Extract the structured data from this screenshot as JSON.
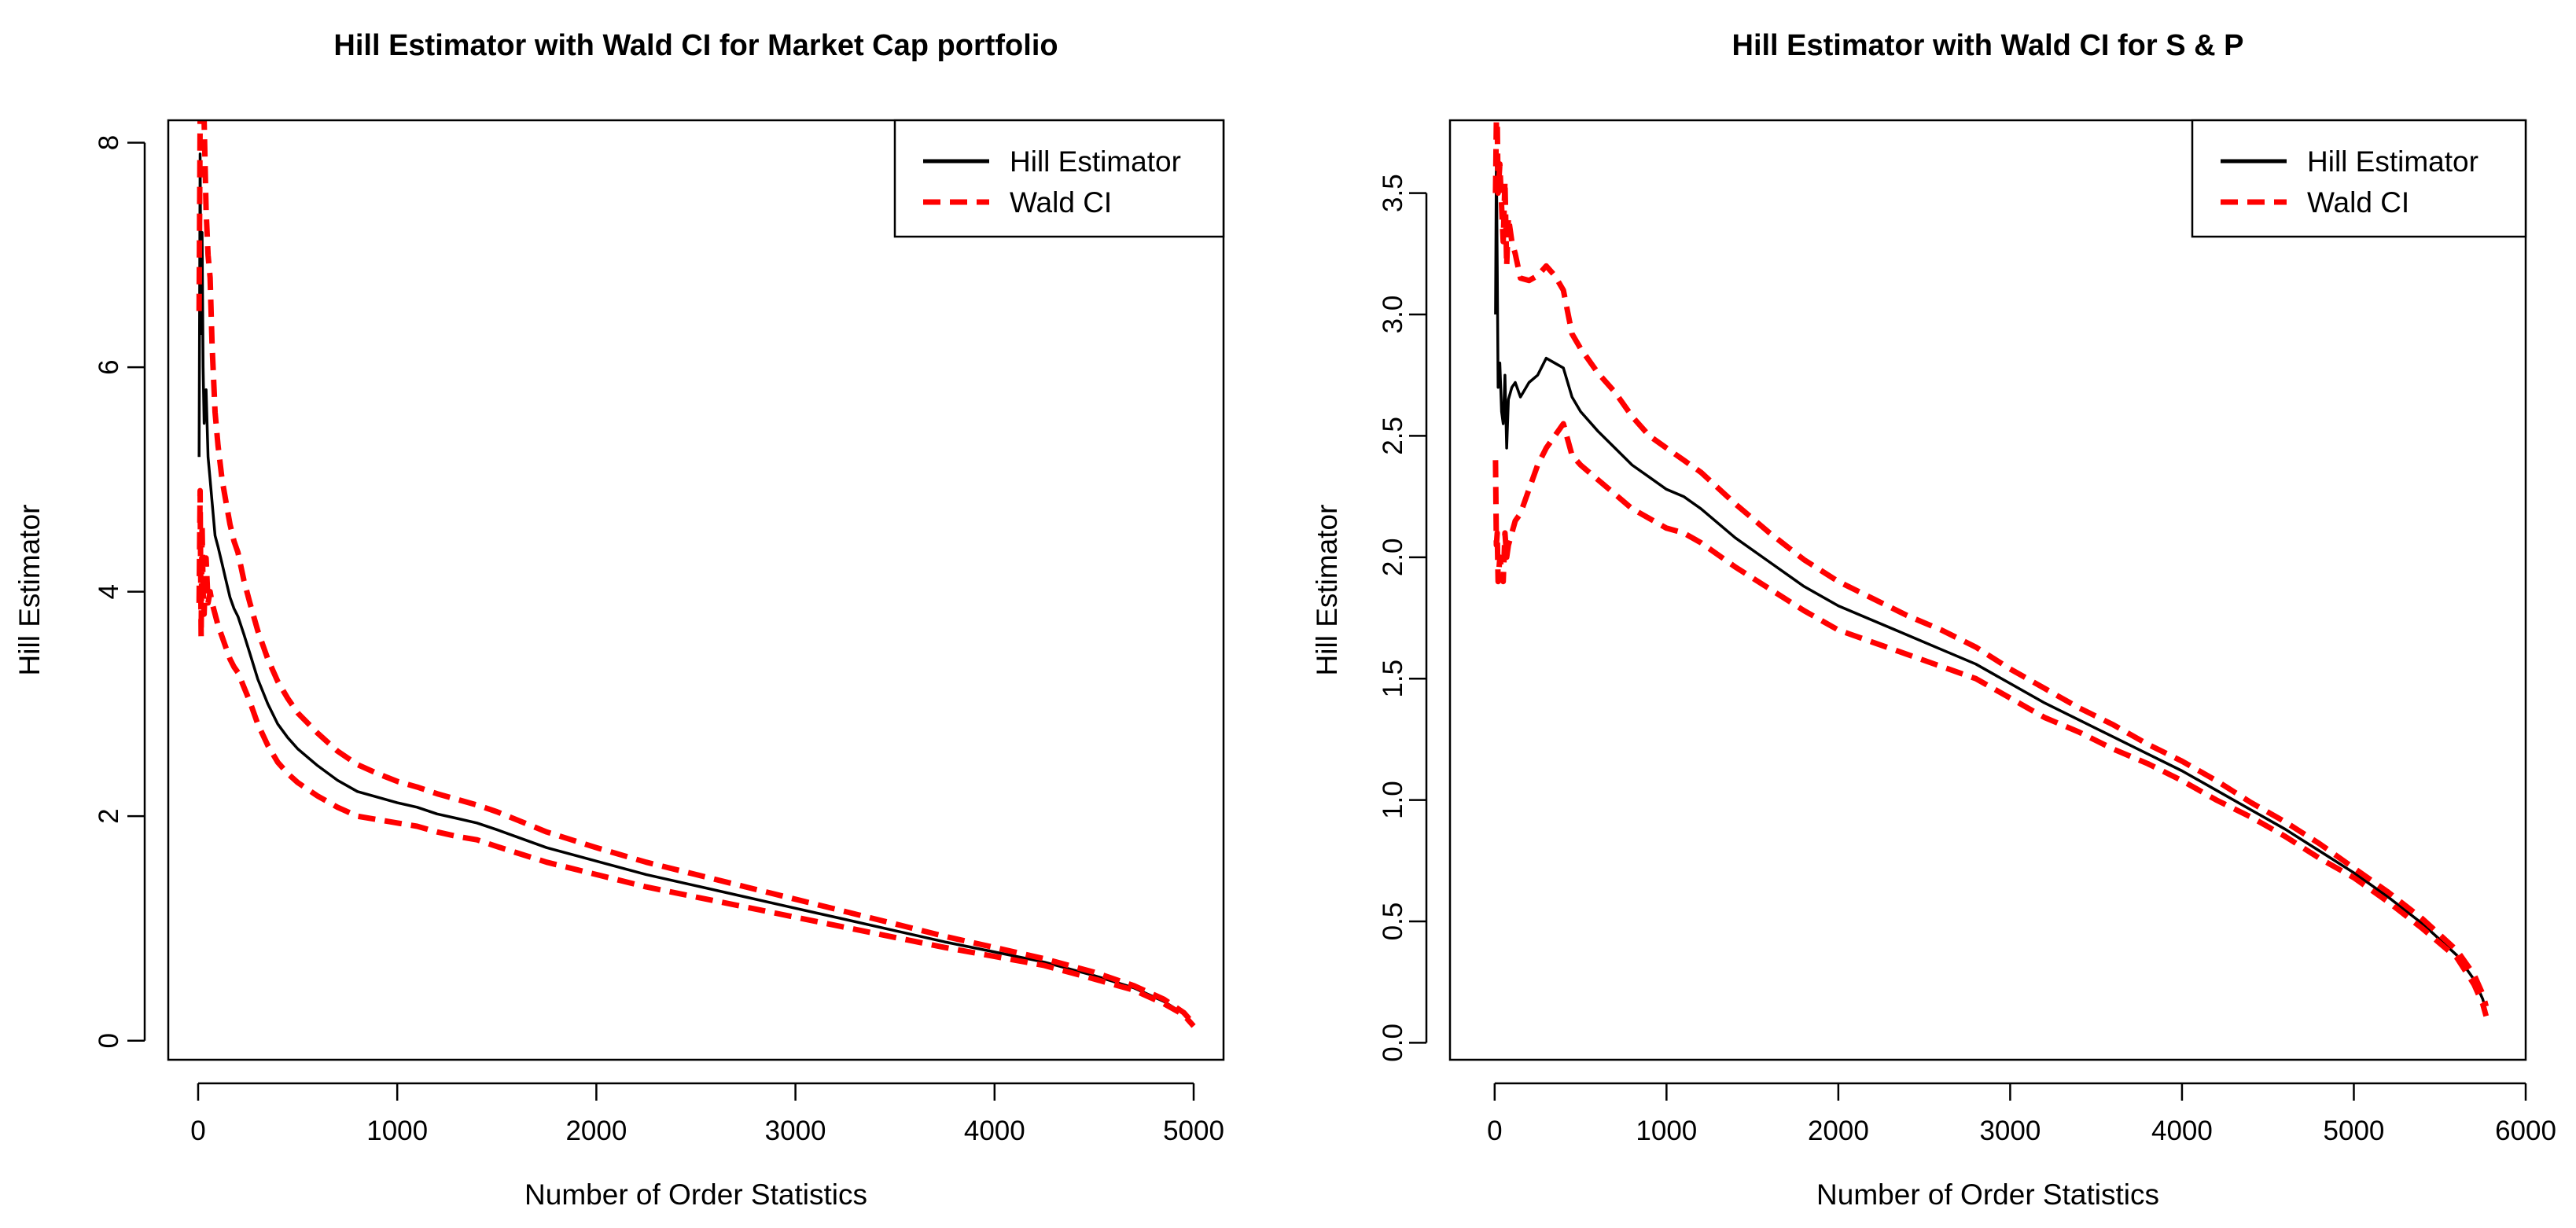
{
  "chart_data": [
    {
      "type": "line",
      "title": "Hill Estimator with Wald CI for Market Cap portfolio",
      "xlabel": "Number of Order Statistics",
      "ylabel": "Hill Estimator",
      "xlim": [
        -150,
        5150
      ],
      "ylim": [
        -0.17,
        8.2
      ],
      "xticks": [
        0,
        1000,
        2000,
        3000,
        4000,
        5000
      ],
      "xtick_labels": [
        "0",
        "1000",
        "2000",
        "3000",
        "4000",
        "5000"
      ],
      "yticks": [
        0,
        2,
        4,
        6,
        8
      ],
      "ytick_labels": [
        "0",
        "2",
        "4",
        "6",
        "8"
      ],
      "legend": {
        "position": "top-right",
        "entries": [
          {
            "label": "Hill Estimator",
            "color": "#000000",
            "style": "solid"
          },
          {
            "label": "Wald CI",
            "color": "#ff0000",
            "style": "dashed"
          }
        ]
      },
      "series": [
        {
          "name": "Hill Estimator",
          "color": "#000000",
          "style": "solid",
          "x": [
            5,
            10,
            15,
            20,
            25,
            30,
            40,
            50,
            60,
            70,
            85,
            100,
            120,
            140,
            160,
            180,
            200,
            230,
            260,
            300,
            350,
            400,
            450,
            500,
            600,
            700,
            800,
            900,
            1000,
            1100,
            1200,
            1300,
            1400,
            1500,
            1750,
            2000,
            2250,
            2500,
            2750,
            3000,
            3250,
            3500,
            3750,
            4000,
            4250,
            4500,
            4700,
            4850,
            4950,
            5000
          ],
          "y": [
            5.2,
            7.9,
            6.3,
            7.2,
            6.0,
            5.5,
            5.8,
            5.2,
            5.0,
            4.8,
            4.5,
            4.4,
            4.25,
            4.1,
            3.95,
            3.85,
            3.78,
            3.62,
            3.45,
            3.22,
            3.0,
            2.82,
            2.7,
            2.6,
            2.45,
            2.32,
            2.22,
            2.17,
            2.12,
            2.08,
            2.02,
            1.98,
            1.94,
            1.88,
            1.72,
            1.6,
            1.48,
            1.38,
            1.28,
            1.18,
            1.08,
            0.98,
            0.88,
            0.79,
            0.7,
            0.58,
            0.47,
            0.35,
            0.24,
            0.14
          ]
        },
        {
          "name": "Wald CI (upper)",
          "color": "#ff0000",
          "style": "dashed",
          "x": [
            5,
            10,
            15,
            20,
            25,
            30,
            40,
            50,
            60,
            70,
            85,
            100,
            120,
            140,
            160,
            180,
            200,
            230,
            260,
            300,
            350,
            400,
            450,
            500,
            600,
            700,
            800,
            900,
            1000,
            1100,
            1200,
            1300,
            1400,
            1500,
            1750,
            2000,
            2250,
            2500,
            2750,
            3000,
            3250,
            3500,
            3750,
            4000,
            4250,
            4500,
            4700,
            4850,
            4950,
            5000
          ],
          "y": [
            6.5,
            8.2,
            8.2,
            8.2,
            8.2,
            8.2,
            7.4,
            7.0,
            6.8,
            6.2,
            5.6,
            5.3,
            5.0,
            4.8,
            4.6,
            4.45,
            4.35,
            4.1,
            3.9,
            3.65,
            3.4,
            3.2,
            3.05,
            2.92,
            2.74,
            2.58,
            2.46,
            2.38,
            2.31,
            2.26,
            2.2,
            2.15,
            2.1,
            2.04,
            1.86,
            1.72,
            1.59,
            1.48,
            1.37,
            1.26,
            1.15,
            1.04,
            0.93,
            0.83,
            0.73,
            0.61,
            0.49,
            0.37,
            0.25,
            0.15
          ]
        },
        {
          "name": "Wald CI (lower)",
          "color": "#ff0000",
          "style": "dashed",
          "x": [
            5,
            10,
            15,
            20,
            25,
            30,
            40,
            50,
            60,
            70,
            85,
            100,
            120,
            140,
            160,
            180,
            200,
            230,
            260,
            300,
            350,
            400,
            450,
            500,
            600,
            700,
            800,
            900,
            1000,
            1100,
            1200,
            1300,
            1400,
            1500,
            1750,
            2000,
            2250,
            2500,
            2750,
            3000,
            3250,
            3500,
            3750,
            4000,
            4250,
            4500,
            4700,
            4850,
            4950,
            5000
          ],
          "y": [
            3.9,
            4.9,
            3.6,
            4.6,
            4.0,
            3.8,
            4.3,
            3.9,
            4.0,
            3.9,
            3.8,
            3.7,
            3.6,
            3.5,
            3.4,
            3.33,
            3.28,
            3.15,
            3.02,
            2.82,
            2.63,
            2.48,
            2.38,
            2.3,
            2.18,
            2.08,
            2.0,
            1.97,
            1.94,
            1.91,
            1.86,
            1.82,
            1.79,
            1.73,
            1.59,
            1.48,
            1.37,
            1.28,
            1.19,
            1.1,
            1.01,
            0.92,
            0.83,
            0.75,
            0.67,
            0.55,
            0.45,
            0.33,
            0.23,
            0.13
          ]
        }
      ]
    },
    {
      "type": "line",
      "title": "Hill Estimator with Wald CI for S & P",
      "xlabel": "Number of Order Statistics",
      "ylabel": "Hill Estimator",
      "xlim": [
        -260,
        6000
      ],
      "ylim": [
        -0.07,
        3.8
      ],
      "xticks": [
        0,
        1000,
        2000,
        3000,
        4000,
        5000,
        6000
      ],
      "xtick_labels": [
        "0",
        "1000",
        "2000",
        "3000",
        "4000",
        "5000",
        "6000"
      ],
      "yticks": [
        0.0,
        0.5,
        1.0,
        1.5,
        2.0,
        2.5,
        3.0,
        3.5
      ],
      "ytick_labels": [
        "0.0",
        "0.5",
        "1.0",
        "1.5",
        "2.0",
        "2.5",
        "3.0",
        "3.5"
      ],
      "legend": {
        "position": "top-right",
        "entries": [
          {
            "label": "Hill Estimator",
            "color": "#000000",
            "style": "solid"
          },
          {
            "label": "Wald CI",
            "color": "#ff0000",
            "style": "dashed"
          }
        ]
      },
      "series": [
        {
          "name": "Hill Estimator",
          "color": "#000000",
          "style": "solid",
          "x": [
            5,
            10,
            15,
            20,
            30,
            40,
            50,
            60,
            70,
            80,
            100,
            120,
            150,
            200,
            250,
            300,
            350,
            400,
            450,
            500,
            600,
            700,
            800,
            900,
            1000,
            1100,
            1200,
            1400,
            1600,
            1800,
            2000,
            2200,
            2400,
            2600,
            2800,
            3000,
            3200,
            3400,
            3600,
            3800,
            4000,
            4200,
            4400,
            4600,
            4800,
            5000,
            5200,
            5400,
            5600,
            5700,
            5750,
            5770
          ],
          "y": [
            3.0,
            3.65,
            3.2,
            2.7,
            2.8,
            2.6,
            2.55,
            2.75,
            2.45,
            2.65,
            2.7,
            2.72,
            2.66,
            2.72,
            2.75,
            2.82,
            2.8,
            2.78,
            2.66,
            2.6,
            2.52,
            2.45,
            2.38,
            2.33,
            2.28,
            2.25,
            2.2,
            2.08,
            1.98,
            1.88,
            1.8,
            1.74,
            1.68,
            1.62,
            1.56,
            1.48,
            1.4,
            1.33,
            1.26,
            1.19,
            1.12,
            1.04,
            0.96,
            0.88,
            0.79,
            0.7,
            0.6,
            0.49,
            0.36,
            0.26,
            0.18,
            0.13
          ]
        },
        {
          "name": "Wald CI (upper)",
          "color": "#ff0000",
          "style": "dashed",
          "x": [
            5,
            10,
            15,
            20,
            30,
            40,
            50,
            60,
            70,
            80,
            100,
            120,
            150,
            200,
            250,
            300,
            350,
            400,
            450,
            500,
            600,
            700,
            800,
            900,
            1000,
            1100,
            1200,
            1400,
            1600,
            1800,
            2000,
            2200,
            2400,
            2600,
            2800,
            3000,
            3200,
            3400,
            3600,
            3800,
            4000,
            4200,
            4400,
            4600,
            4800,
            5000,
            5200,
            5400,
            5600,
            5700,
            5750,
            5770
          ],
          "y": [
            3.5,
            3.8,
            3.8,
            3.5,
            3.62,
            3.45,
            3.3,
            3.55,
            3.2,
            3.4,
            3.3,
            3.25,
            3.15,
            3.14,
            3.16,
            3.2,
            3.16,
            3.1,
            2.92,
            2.86,
            2.76,
            2.68,
            2.58,
            2.5,
            2.45,
            2.4,
            2.35,
            2.22,
            2.1,
            1.99,
            1.9,
            1.83,
            1.76,
            1.7,
            1.63,
            1.54,
            1.46,
            1.38,
            1.31,
            1.23,
            1.16,
            1.08,
            0.99,
            0.91,
            0.82,
            0.72,
            0.62,
            0.51,
            0.38,
            0.28,
            0.2,
            0.15
          ]
        },
        {
          "name": "Wald CI (lower)",
          "color": "#ff0000",
          "style": "dashed",
          "x": [
            5,
            10,
            15,
            20,
            30,
            40,
            50,
            60,
            70,
            80,
            100,
            120,
            150,
            200,
            250,
            300,
            350,
            400,
            450,
            500,
            600,
            700,
            800,
            900,
            1000,
            1100,
            1200,
            1400,
            1600,
            1800,
            2000,
            2200,
            2400,
            2600,
            2800,
            3000,
            3200,
            3400,
            3600,
            3800,
            4000,
            4200,
            4400,
            4600,
            4800,
            5000,
            5200,
            5400,
            5600,
            5700,
            5750,
            5770
          ],
          "y": [
            2.4,
            2.05,
            2.1,
            1.9,
            2.0,
            1.95,
            1.9,
            2.1,
            2.0,
            2.05,
            2.1,
            2.15,
            2.18,
            2.28,
            2.38,
            2.45,
            2.5,
            2.55,
            2.42,
            2.38,
            2.32,
            2.26,
            2.2,
            2.16,
            2.12,
            2.1,
            2.06,
            1.96,
            1.87,
            1.78,
            1.7,
            1.65,
            1.6,
            1.55,
            1.5,
            1.42,
            1.34,
            1.28,
            1.21,
            1.15,
            1.08,
            1.0,
            0.93,
            0.85,
            0.76,
            0.68,
            0.58,
            0.47,
            0.35,
            0.24,
            0.16,
            0.11
          ]
        }
      ]
    }
  ]
}
